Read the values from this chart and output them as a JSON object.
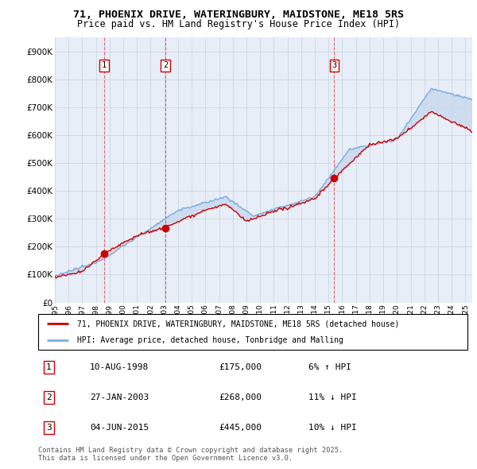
{
  "title_line1": "71, PHOENIX DRIVE, WATERINGBURY, MAIDSTONE, ME18 5RS",
  "title_line2": "Price paid vs. HM Land Registry's House Price Index (HPI)",
  "red_label": "71, PHOENIX DRIVE, WATERINGBURY, MAIDSTONE, ME18 5RS (detached house)",
  "blue_label": "HPI: Average price, detached house, Tonbridge and Malling",
  "footer": "Contains HM Land Registry data © Crown copyright and database right 2025.\nThis data is licensed under the Open Government Licence v3.0.",
  "sales": [
    {
      "num": 1,
      "date": "10-AUG-1998",
      "price": 175000,
      "pct": "6%",
      "dir": "↑",
      "x_year": 1998.6
    },
    {
      "num": 2,
      "date": "27-JAN-2003",
      "price": 268000,
      "pct": "11%",
      "dir": "↓",
      "x_year": 2003.07
    },
    {
      "num": 3,
      "date": "04-JUN-2015",
      "price": 445000,
      "pct": "10%",
      "dir": "↓",
      "x_year": 2015.42
    }
  ],
  "ylim": [
    0,
    950000
  ],
  "yticks": [
    0,
    100000,
    200000,
    300000,
    400000,
    500000,
    600000,
    700000,
    800000,
    900000
  ],
  "xlim_start": 1995.0,
  "xlim_end": 2025.5,
  "bg_color": "#e8eef8",
  "red_color": "#cc0000",
  "blue_color": "#7aaddb",
  "fill_color": "#c8d8ee",
  "grid_color": "#c8d0dc",
  "vline_color": "#dd4444"
}
